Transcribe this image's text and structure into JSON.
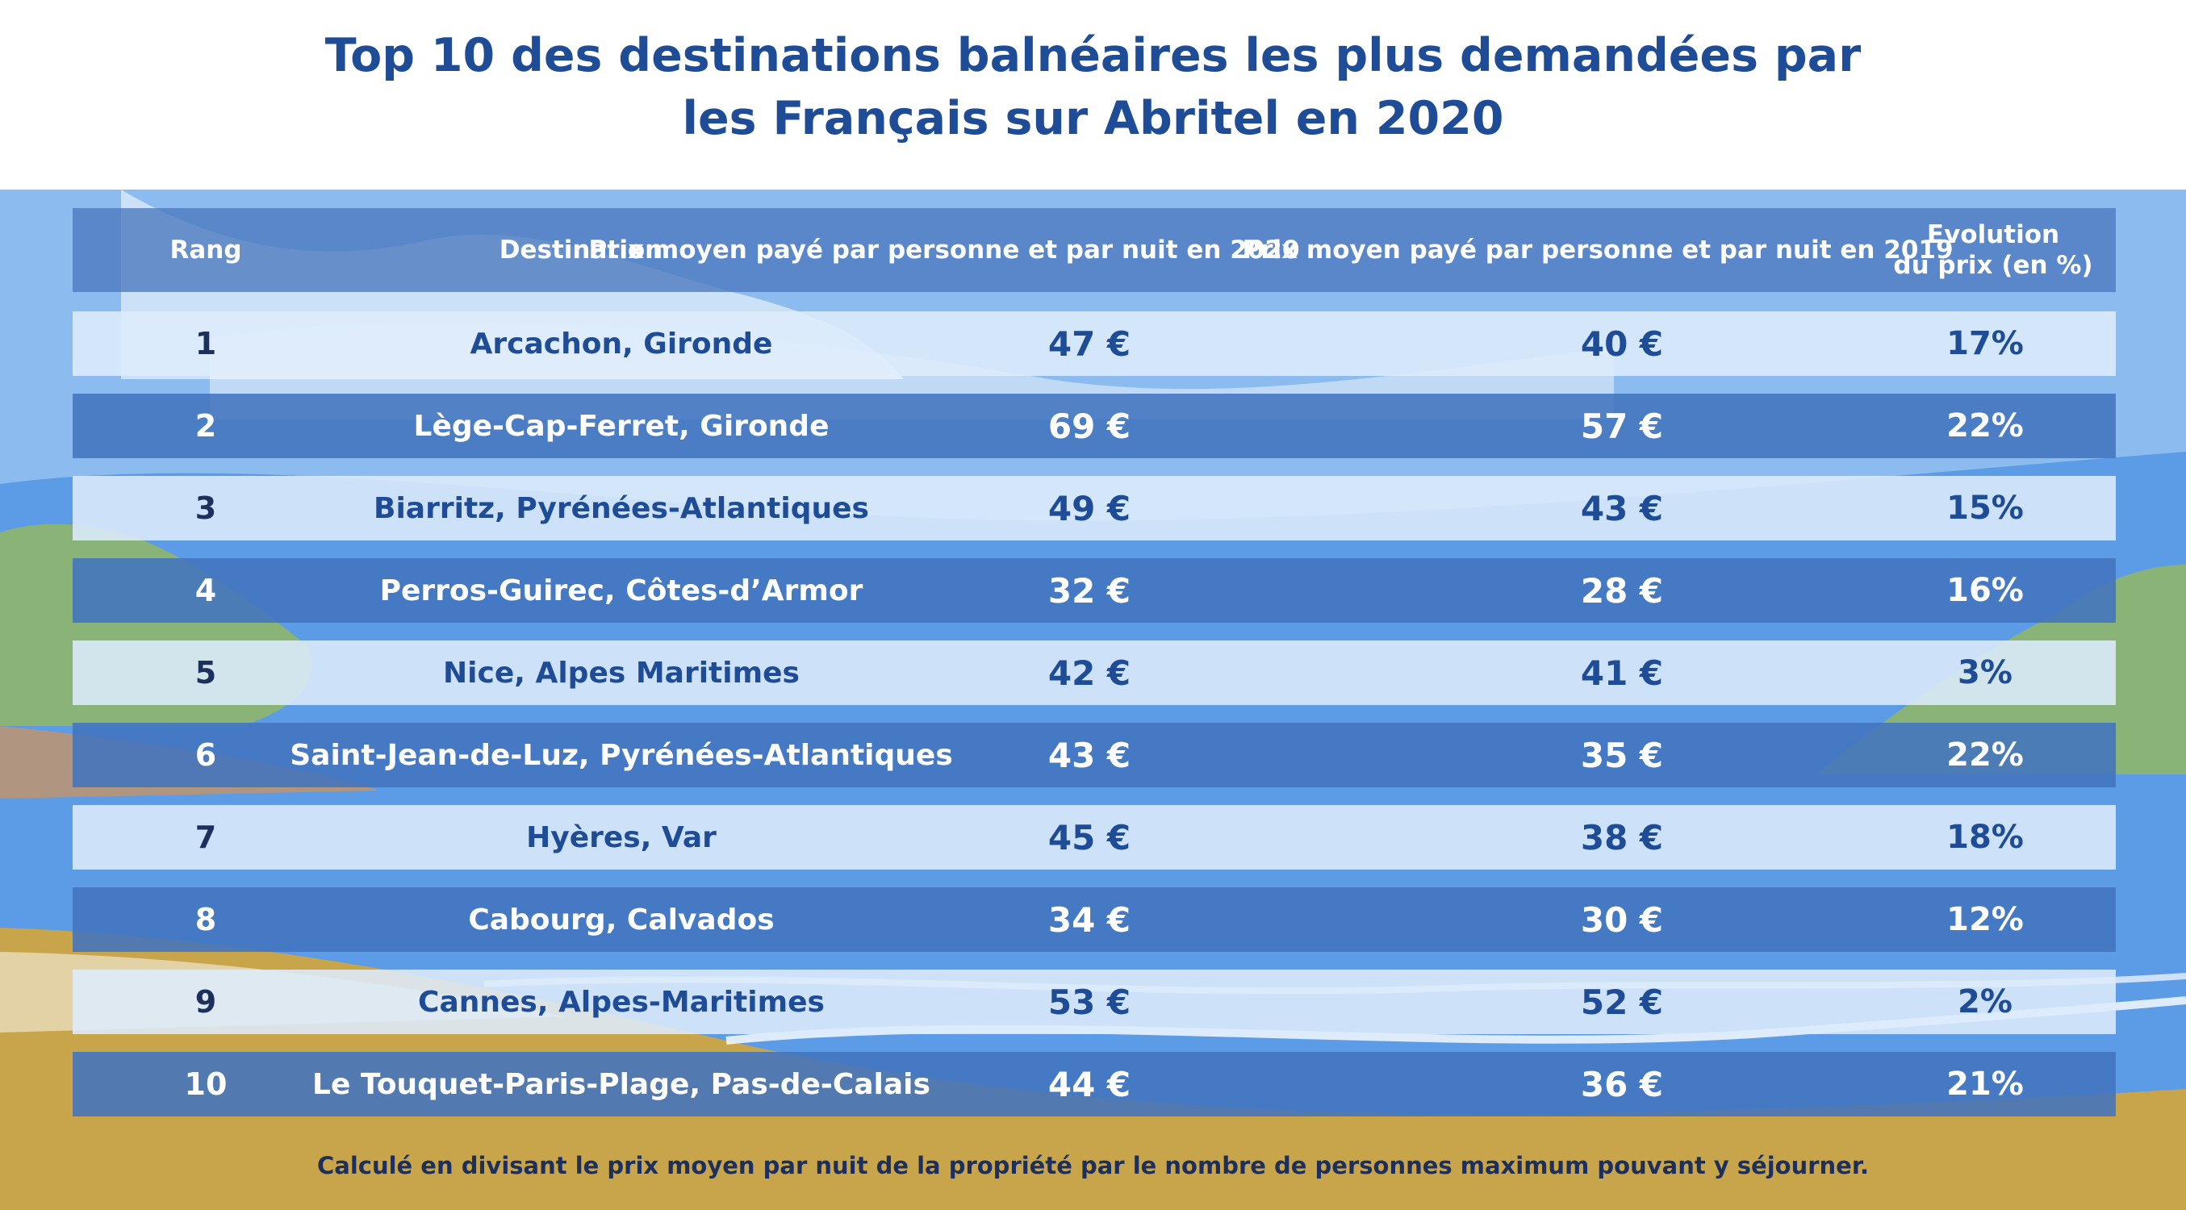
{
  "title_lines": [
    "Top 10 des destinations balnéaires les plus demandées par",
    "les Français sur Abritel en 2020"
  ],
  "footnote": "Calculé en divisant le prix moyen par nuit de la propriété par le nombre de personnes maximum pouvant y séjourner.",
  "colors": {
    "title": "#1f4c96",
    "header_row": "#4a78be",
    "light_row": "#ddecfc",
    "dark_row": "#4274be",
    "sky": "#8cbcef",
    "sand": "#c8a54a",
    "vegetation": "#8ab378"
  },
  "chart_data": {
    "type": "table",
    "columns": [
      "Rang",
      "Destination",
      "Prix moyen payé par personne et par nuit en 2020",
      "Prix moyen payé par personne et par nuit en 2019",
      "Evolution du prix (en %)"
    ],
    "header_lines": {
      "evolution": [
        "Evolution",
        "du prix (en %)"
      ]
    },
    "rows": [
      {
        "rank": "1",
        "destination": "Arcachon, Gironde",
        "price_2020": "47 €",
        "price_2019": "40 €",
        "evolution": "17%"
      },
      {
        "rank": "2",
        "destination": "Lège-Cap-Ferret, Gironde",
        "price_2020": "69 €",
        "price_2019": "57 €",
        "evolution": "22%"
      },
      {
        "rank": "3",
        "destination": "Biarritz, Pyrénées-Atlantiques",
        "price_2020": "49 €",
        "price_2019": "43 €",
        "evolution": "15%"
      },
      {
        "rank": "4",
        "destination": "Perros-Guirec, Côtes-d’Armor",
        "price_2020": "32 €",
        "price_2019": "28 €",
        "evolution": "16%"
      },
      {
        "rank": "5",
        "destination": "Nice, Alpes Maritimes",
        "price_2020": "42 €",
        "price_2019": "41 €",
        "evolution": "3%"
      },
      {
        "rank": "6",
        "destination": "Saint-Jean-de-Luz, Pyrénées-Atlantiques",
        "price_2020": "43 €",
        "price_2019": "35 €",
        "evolution": "22%"
      },
      {
        "rank": "7",
        "destination": "Hyères, Var",
        "price_2020": "45 €",
        "price_2019": "38 €",
        "evolution": "18%"
      },
      {
        "rank": "8",
        "destination": "Cabourg, Calvados",
        "price_2020": "34 €",
        "price_2019": "30 €",
        "evolution": "12%"
      },
      {
        "rank": "9",
        "destination": "Cannes, Alpes-Maritimes",
        "price_2020": "53 €",
        "price_2019": "52 €",
        "evolution": "2%"
      },
      {
        "rank": "10",
        "destination": "Le Touquet-Paris-Plage, Pas-de-Calais",
        "price_2020": "44 €",
        "price_2019": "36 €",
        "evolution": "21%"
      }
    ]
  }
}
